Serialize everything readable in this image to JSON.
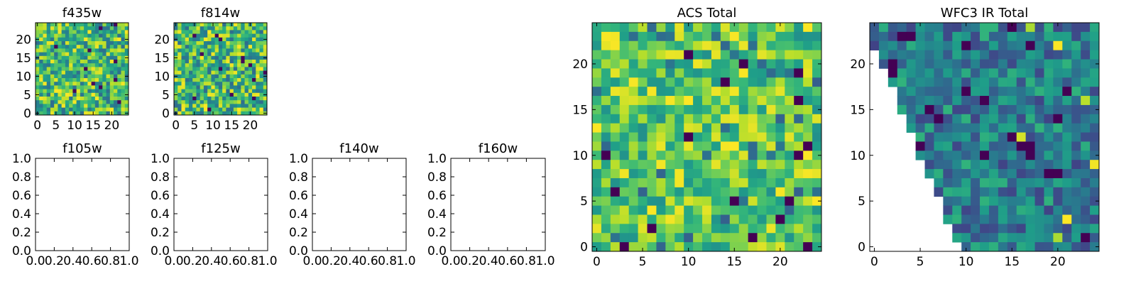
{
  "figure": {
    "background": "#ffffff",
    "colormap": "viridis"
  },
  "chart_data": [
    {
      "id": "f435w",
      "type": "heatmap",
      "title": "f435w",
      "rows": 25,
      "cols": 25,
      "xlim": [
        -0.5,
        24.5
      ],
      "ylim": [
        -0.5,
        24.5
      ],
      "xticks": [
        0,
        5,
        10,
        15,
        20
      ],
      "yticks": [
        0,
        5,
        10,
        15,
        20
      ],
      "values_range": [
        0,
        1
      ],
      "values_note": "random per-pixel noise",
      "seed": 435
    },
    {
      "id": "f814w",
      "type": "heatmap",
      "title": "f814w",
      "rows": 25,
      "cols": 25,
      "xlim": [
        -0.5,
        24.5
      ],
      "ylim": [
        -0.5,
        24.5
      ],
      "xticks": [
        0,
        5,
        10,
        15,
        20
      ],
      "yticks": [
        0,
        5,
        10,
        15,
        20
      ],
      "values_range": [
        0,
        1
      ],
      "seed": 814
    },
    {
      "id": "f105w",
      "type": "empty",
      "title": "f105w",
      "xlim": [
        0,
        1
      ],
      "ylim": [
        0,
        1
      ],
      "xticks": [
        "0.0",
        "0.2",
        "0.4",
        "0.6",
        "0.8",
        "1.0"
      ],
      "yticks": [
        "0.0",
        "0.2",
        "0.4",
        "0.6",
        "0.8",
        "1.0"
      ]
    },
    {
      "id": "f125w",
      "type": "empty",
      "title": "f125w",
      "xlim": [
        0,
        1
      ],
      "ylim": [
        0,
        1
      ],
      "xticks": [
        "0.0",
        "0.2",
        "0.4",
        "0.6",
        "0.8",
        "1.0"
      ],
      "yticks": [
        "0.0",
        "0.2",
        "0.4",
        "0.6",
        "0.8",
        "1.0"
      ]
    },
    {
      "id": "f140w",
      "type": "empty",
      "title": "f140w",
      "xlim": [
        0,
        1
      ],
      "ylim": [
        0,
        1
      ],
      "xticks": [
        "0.0",
        "0.2",
        "0.4",
        "0.6",
        "0.8",
        "1.0"
      ],
      "yticks": [
        "0.0",
        "0.2",
        "0.4",
        "0.6",
        "0.8",
        "1.0"
      ]
    },
    {
      "id": "f160w",
      "type": "empty",
      "title": "f160w",
      "xlim": [
        0,
        1
      ],
      "ylim": [
        0,
        1
      ],
      "xticks": [
        "0.0",
        "0.2",
        "0.4",
        "0.6",
        "0.8",
        "1.0"
      ],
      "yticks": [
        "0.0",
        "0.2",
        "0.4",
        "0.6",
        "0.8",
        "1.0"
      ]
    },
    {
      "id": "acs-total",
      "type": "heatmap",
      "title": "ACS Total",
      "rows": 25,
      "cols": 25,
      "xlim": [
        -0.5,
        24.5
      ],
      "ylim": [
        -0.5,
        24.5
      ],
      "xticks": [
        0,
        5,
        10,
        15,
        20
      ],
      "yticks": [
        0,
        5,
        10,
        15,
        20
      ],
      "values_range": [
        0,
        1
      ],
      "seed": 1234
    },
    {
      "id": "wfc3-ir-total",
      "type": "heatmap",
      "title": "WFC3 IR Total",
      "rows": 25,
      "cols": 25,
      "xlim": [
        -0.5,
        24.5
      ],
      "ylim": [
        -0.5,
        24.5
      ],
      "xticks": [
        0,
        5,
        10,
        15,
        20
      ],
      "yticks": [
        0,
        5,
        10,
        15,
        20
      ],
      "values_range": [
        0,
        1
      ],
      "masked_region": "lower-left triangle (no data)",
      "seed": 3141
    }
  ]
}
